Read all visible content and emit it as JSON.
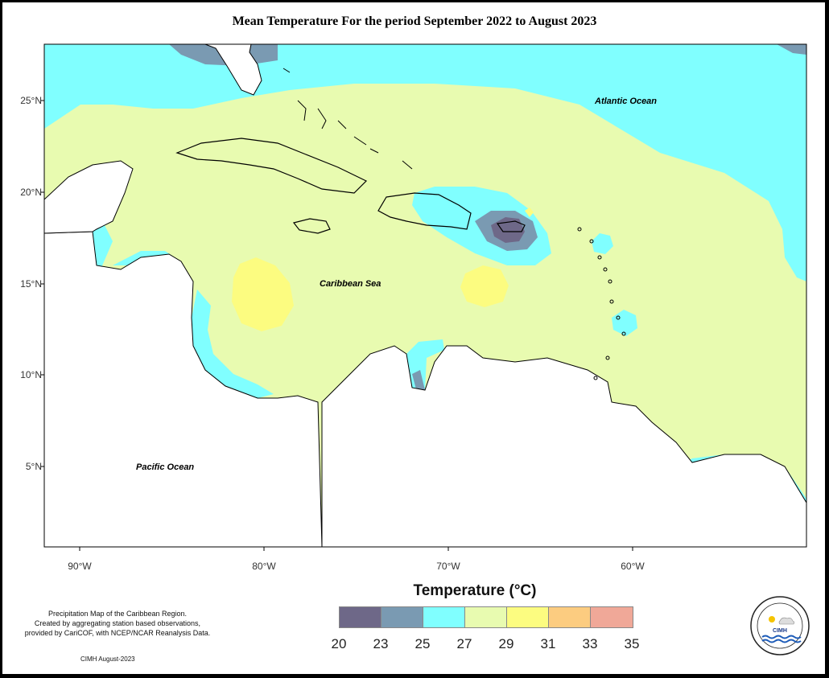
{
  "title": "Mean Temperature For the period September 2022 to August 2023",
  "axes": {
    "lat_ticks": [
      "25°N",
      "20°N",
      "15°N",
      "10°N",
      "5°N"
    ],
    "lon_ticks": [
      "90°W",
      "80°W",
      "70°W",
      "60°W"
    ]
  },
  "labels": {
    "atlantic": "Atlantic Ocean",
    "caribbean": "Caribbean Sea",
    "pacific": "Pacific Ocean"
  },
  "legend": {
    "title": "Temperature (°C)",
    "colors": [
      "#6e6888",
      "#7a9ab2",
      "#80ffff",
      "#e8fbb0",
      "#fcfc80",
      "#fccc80",
      "#f0a898"
    ],
    "labels": [
      "20",
      "23",
      "25",
      "27",
      "29",
      "31",
      "33",
      "35"
    ]
  },
  "credit": {
    "lines": [
      "Precipitation Map of the Caribbean Region.",
      "Created by aggregating station based observations,",
      "provided by CariCOF, with NCEP/NCAR Reanalysis Data."
    ],
    "date": "CIMH August-2023"
  },
  "logo": {
    "text": "CIMH"
  }
}
